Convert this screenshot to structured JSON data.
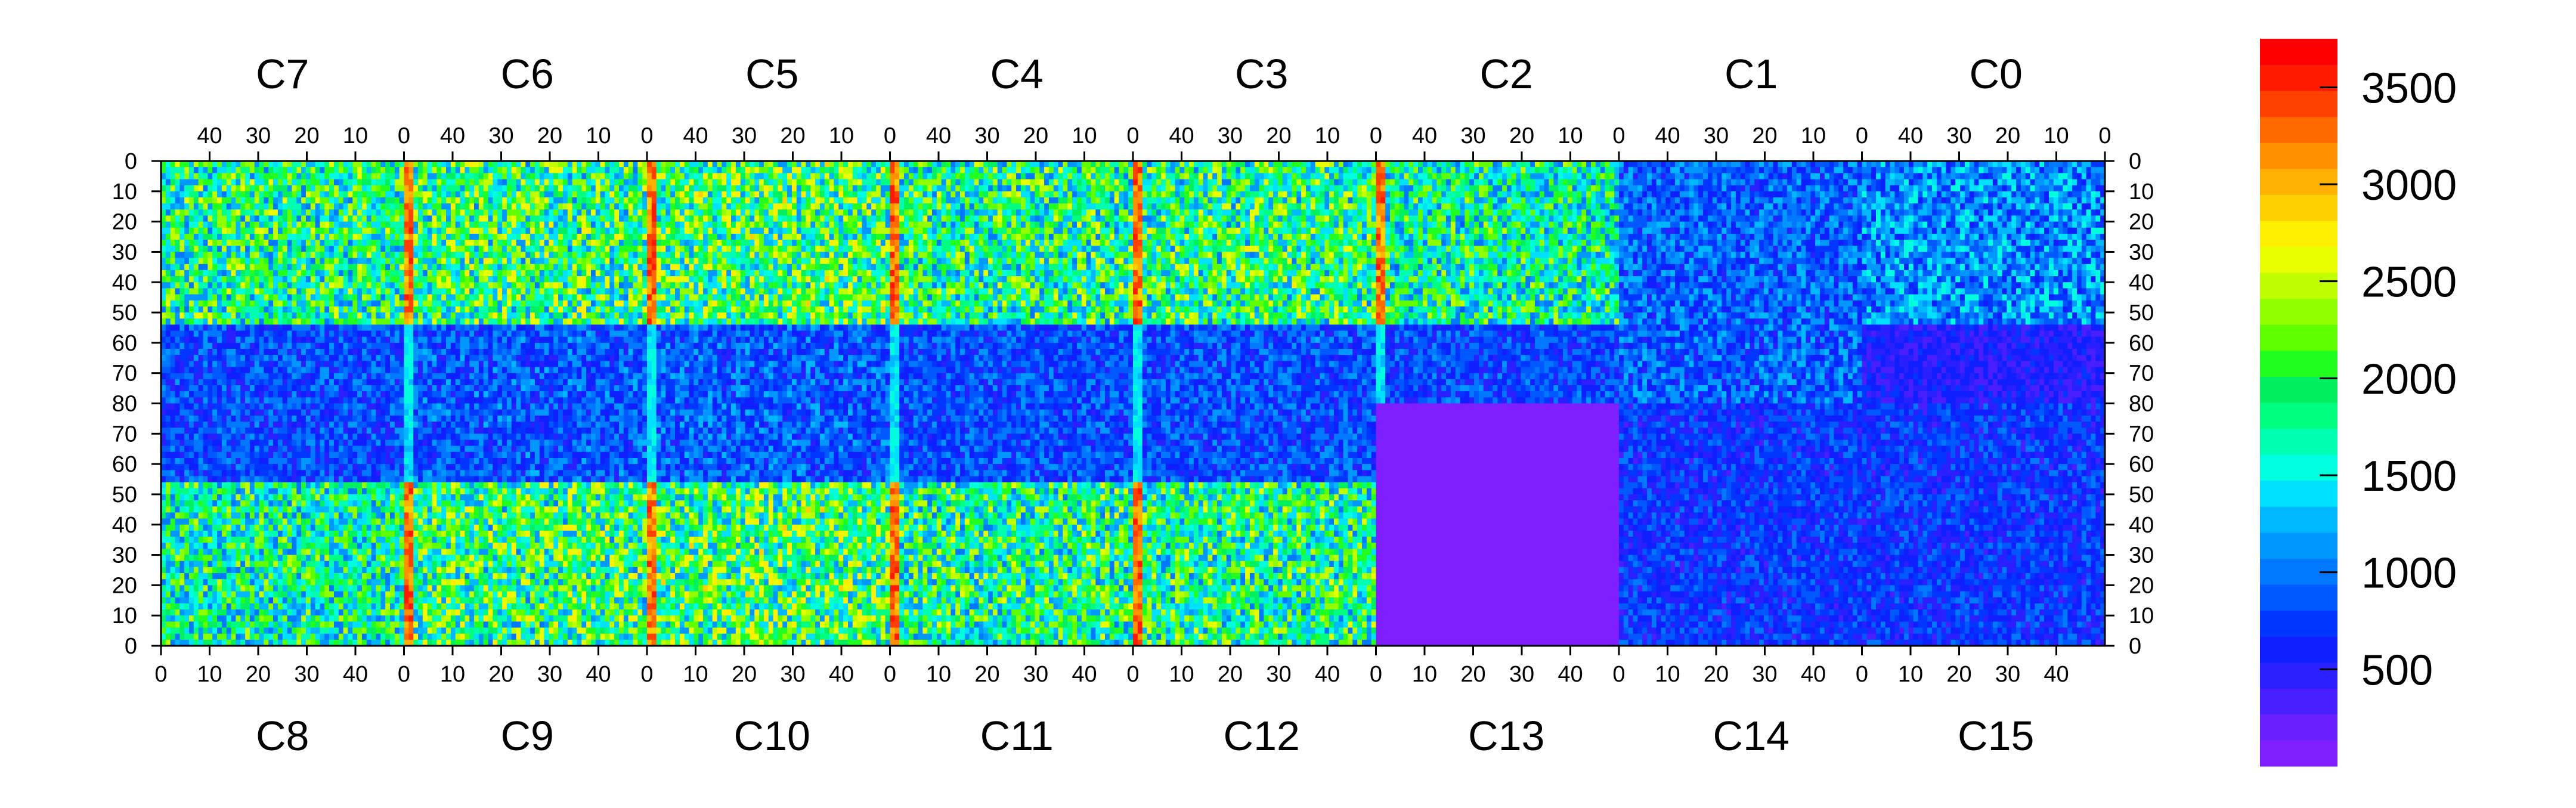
{
  "chart_data": {
    "type": "heatmap",
    "title": "",
    "top_chip_labels": [
      "C7",
      "C6",
      "C5",
      "C4",
      "C3",
      "C2",
      "C1",
      "C0"
    ],
    "bottom_chip_labels": [
      "C8",
      "C9",
      "C10",
      "C11",
      "C12",
      "C13",
      "C14",
      "C15"
    ],
    "top_axis_ticks": [
      "40",
      "30",
      "20",
      "10",
      "0"
    ],
    "bottom_axis_ticks": [
      "0",
      "10",
      "20",
      "30",
      "40"
    ],
    "y_axis_ticks": [
      "0",
      "10",
      "20",
      "30",
      "40",
      "50",
      "60",
      "70",
      "80",
      "70",
      "60",
      "50",
      "40",
      "30",
      "20",
      "10",
      "0"
    ],
    "colorbar": {
      "min": 0,
      "max": 3750,
      "ticks": [
        500,
        1000,
        1500,
        2000,
        2500,
        3000,
        3500
      ],
      "tick_labels": [
        "500",
        "1000",
        "1500",
        "2000",
        "2500",
        "3000",
        "3500"
      ],
      "colors": [
        "#7f1fff",
        "#6a1fff",
        "#4a1fff",
        "#2a1fff",
        "#0f1fff",
        "#0036ff",
        "#0058ff",
        "#0078ff",
        "#0098ff",
        "#00b8ff",
        "#00e0ff",
        "#00ffdf",
        "#00ffb0",
        "#00ff80",
        "#00f060",
        "#20ff20",
        "#60ff00",
        "#90ff00",
        "#c0ff00",
        "#e8ff00",
        "#ffef00",
        "#ffd000",
        "#ffb000",
        "#ff9000",
        "#ff6a00",
        "#ff4000",
        "#ff1a00",
        "#ff0000"
      ]
    },
    "grid": false,
    "approx_occupancy_by_half_chip": {
      "C7": 1800,
      "C6": 1900,
      "C5": 1950,
      "C4": 1800,
      "C3": 1850,
      "C2": 1700,
      "C1": 900,
      "C0": 1100,
      "C8": 1700,
      "C9": 1900,
      "C10": 1950,
      "C11": 1800,
      "C12": 1800,
      "C13": 200,
      "C14": 700,
      "C15": 700
    },
    "notes_visible": {
      "high_columns_value": 3400,
      "masked_regions_value": 100
    }
  }
}
